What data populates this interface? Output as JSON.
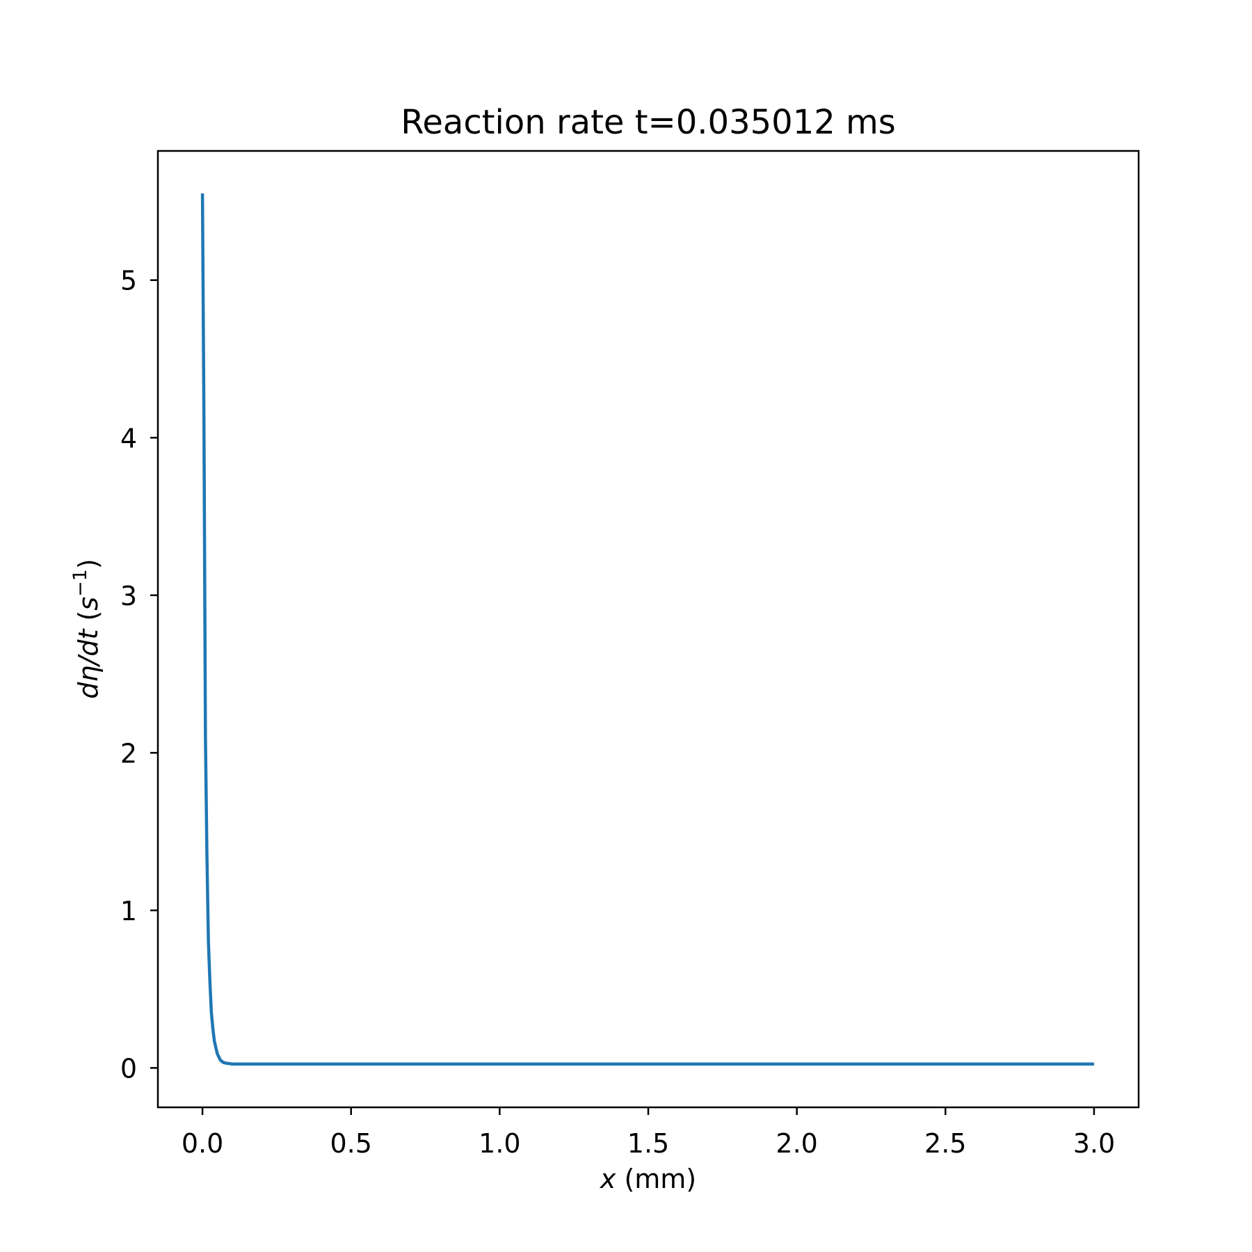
{
  "chart_data": {
    "type": "line",
    "title": "Reaction rate t=0.035012 ms",
    "xlabel": {
      "var": "x",
      "unit": " (mm)"
    },
    "ylabel": {
      "var": "dη/dt",
      "open": " (",
      "base": "s",
      "sup": "−1",
      "close": ")"
    },
    "xlim": [
      -0.15,
      3.15
    ],
    "ylim": [
      -0.25,
      5.82
    ],
    "xticks": [
      0.0,
      0.5,
      1.0,
      1.5,
      2.0,
      2.5,
      3.0
    ],
    "xtick_labels": [
      "0.0",
      "0.5",
      "1.0",
      "1.5",
      "2.0",
      "2.5",
      "3.0"
    ],
    "yticks": [
      0,
      1,
      2,
      3,
      4,
      5
    ],
    "ytick_labels": [
      "0",
      "1",
      "2",
      "3",
      "4",
      "5"
    ],
    "grid": false,
    "series": [
      {
        "color": "#1f77b4",
        "x": [
          0.0,
          0.005,
          0.01,
          0.015,
          0.02,
          0.025,
          0.03,
          0.035,
          0.04,
          0.05,
          0.06,
          0.07,
          0.08,
          0.1,
          0.12,
          0.2,
          0.5,
          1.0,
          1.5,
          2.0,
          2.5,
          3.0
        ],
        "y": [
          5.55,
          4.1,
          2.1,
          1.35,
          0.8,
          0.55,
          0.35,
          0.25,
          0.17,
          0.09,
          0.05,
          0.035,
          0.03,
          0.025,
          0.025,
          0.025,
          0.025,
          0.025,
          0.025,
          0.025,
          0.025,
          0.025
        ]
      }
    ]
  }
}
